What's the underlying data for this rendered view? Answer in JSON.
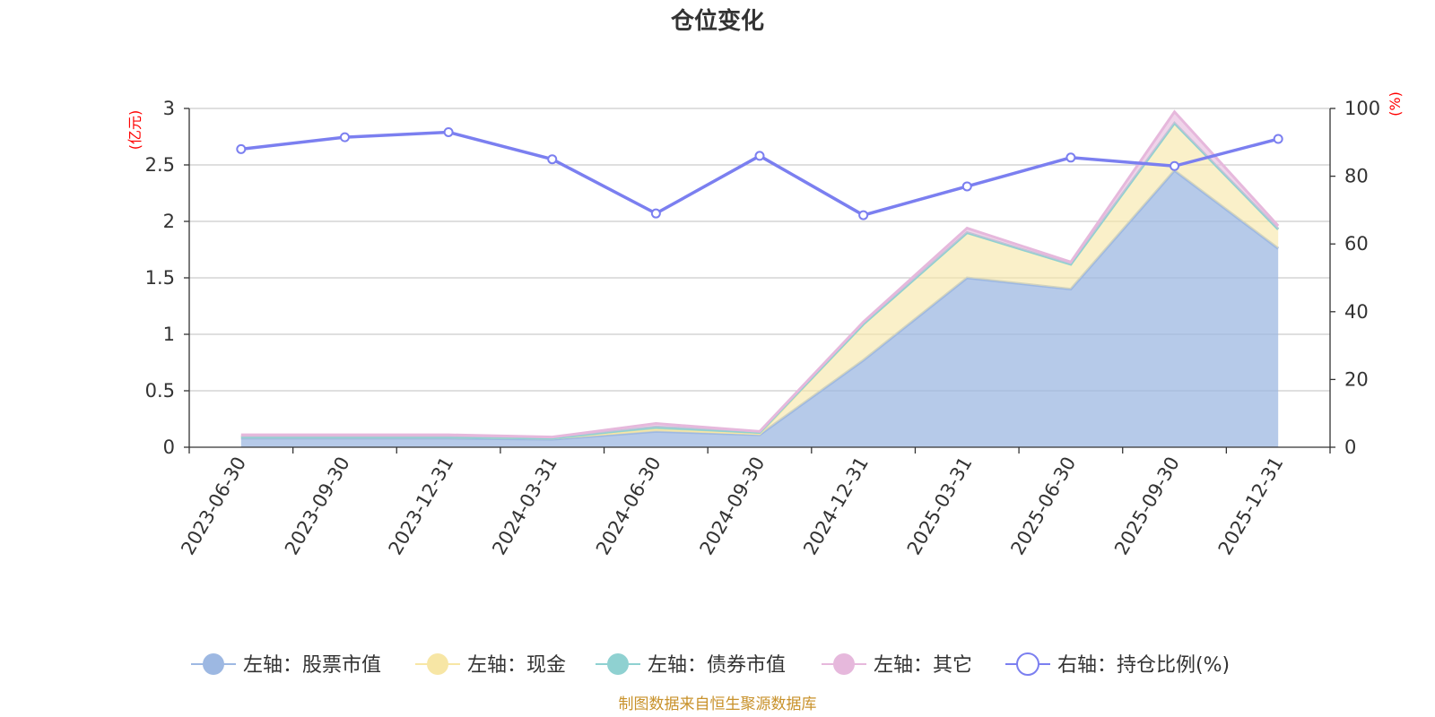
{
  "chart_data": {
    "type": "area",
    "title": "仓位变化",
    "categories": [
      "2023-06-30",
      "2023-09-30",
      "2023-12-31",
      "2024-03-31",
      "2024-06-30",
      "2024-09-30",
      "2024-12-31",
      "2025-03-31",
      "2025-06-30",
      "2025-09-30",
      "2025-12-31"
    ],
    "left_axis": {
      "unit": "(亿元)",
      "ylim": [
        0,
        3
      ],
      "ticks": [
        "0",
        "0.5",
        "1",
        "1.5",
        "2",
        "2.5",
        "3"
      ]
    },
    "right_axis": {
      "unit": "(%)",
      "ylim": [
        0,
        100
      ],
      "ticks": [
        "0",
        "20",
        "40",
        "60",
        "80",
        "100"
      ]
    },
    "series": [
      {
        "name": "左轴：股票市值",
        "axis": "left",
        "stack": true,
        "color": "#9db8e2",
        "values": [
          0.08,
          0.08,
          0.08,
          0.07,
          0.14,
          0.11,
          0.77,
          1.5,
          1.4,
          2.45,
          1.76
        ]
      },
      {
        "name": "左轴：现金",
        "axis": "left",
        "stack": true,
        "color": "#f7e6a5",
        "values": [
          0.01,
          0.01,
          0.01,
          0.01,
          0.02,
          0.01,
          0.32,
          0.4,
          0.22,
          0.42,
          0.17
        ]
      },
      {
        "name": "左轴：债券市值",
        "axis": "left",
        "stack": true,
        "color": "#8fd1d1",
        "values": [
          0.0,
          0.0,
          0.0,
          0.0,
          0.02,
          0.01,
          0.0,
          0.0,
          0.0,
          0.0,
          0.0
        ]
      },
      {
        "name": "左轴：其它",
        "axis": "left",
        "stack": true,
        "color": "#e6b8dc",
        "values": [
          0.02,
          0.02,
          0.02,
          0.01,
          0.03,
          0.01,
          0.02,
          0.04,
          0.02,
          0.1,
          0.03
        ]
      },
      {
        "name": "右轴：持仓比例(%)",
        "axis": "right",
        "stack": false,
        "color": "#7b7ff0",
        "values": [
          88,
          91.5,
          93,
          85,
          69,
          86,
          68.5,
          77,
          85.5,
          83,
          91
        ]
      }
    ],
    "source": "制图数据来自恒生聚源数据库"
  }
}
